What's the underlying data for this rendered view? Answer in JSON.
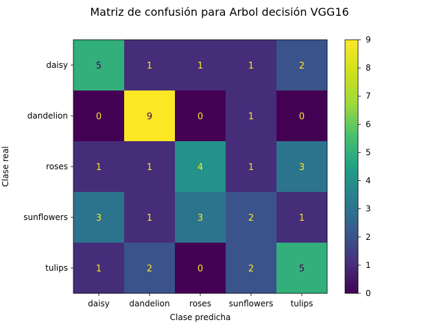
{
  "chart_data": {
    "type": "heatmap",
    "title": "Matriz de confusión para Arbol decisión VGG16",
    "xlabel": "Clase predicha",
    "ylabel": "Clase real",
    "x_categories": [
      "daisy",
      "dandelion",
      "roses",
      "sunflowers",
      "tulips"
    ],
    "y_categories": [
      "daisy",
      "dandelion",
      "roses",
      "sunflowers",
      "tulips"
    ],
    "values": [
      [
        5,
        1,
        1,
        1,
        2
      ],
      [
        0,
        9,
        0,
        1,
        0
      ],
      [
        1,
        1,
        4,
        1,
        3
      ],
      [
        3,
        1,
        3,
        2,
        1
      ],
      [
        1,
        2,
        0,
        2,
        5
      ]
    ],
    "colormap": "viridis",
    "colorbar": {
      "min": 0,
      "max": 9,
      "ticks": [
        "0",
        "1",
        "2",
        "3",
        "4",
        "5",
        "6",
        "7",
        "8",
        "9"
      ]
    },
    "text_colors": {
      "on_dark": "#fde725",
      "on_light": "#440154"
    }
  }
}
